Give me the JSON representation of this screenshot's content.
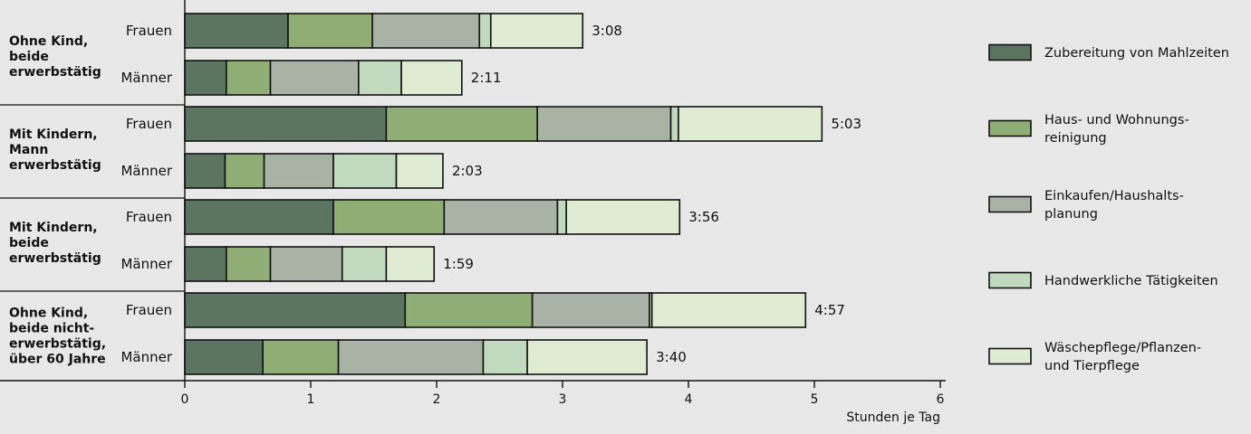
{
  "chart_data": {
    "type": "bar",
    "orientation": "horizontal",
    "stacked": true,
    "xlabel": "Stunden je Tag",
    "xlim": [
      0,
      6
    ],
    "xticks": [
      "0",
      "1",
      "2",
      "3",
      "4",
      "5",
      "6"
    ],
    "grid": false,
    "legend_position": "right",
    "components": [
      {
        "name": "Zubereitung von Mahlzeiten",
        "label_lines": [
          "Zubereitung von Mahlzeiten"
        ],
        "color": "#5b7560"
      },
      {
        "name": "Haus- und Wohnungsreinigung",
        "label_lines": [
          "Haus- und Wohnungs-",
          "reinigung"
        ],
        "color": "#8fad74"
      },
      {
        "name": "Einkaufen/Haushaltsplanung",
        "label_lines": [
          "Einkaufen/Haushalts-",
          "planung"
        ],
        "color": "#a8b3a5"
      },
      {
        "name": "Handwerkliche Tätigkeiten",
        "label_lines": [
          "Handwerkliche Tätigkeiten"
        ],
        "color": "#c1d9be"
      },
      {
        "name": "Wäschepflege/Pflanzen- und Tierpflege",
        "label_lines": [
          "Wäschepflege/Pflanzen-",
          "und Tierpflege"
        ],
        "color": "#e0ebd3"
      }
    ],
    "groups": [
      {
        "label_lines": [
          "Ohne Kind,",
          "beide",
          "erwerbstätig"
        ],
        "bars": [
          {
            "label": "Frauen",
            "total": "3:08",
            "values": [
              0.82,
              0.67,
              0.85,
              0.09,
              0.73
            ]
          },
          {
            "label": "Männer",
            "total": "2:11",
            "values": [
              0.33,
              0.35,
              0.7,
              0.34,
              0.48
            ]
          }
        ]
      },
      {
        "label_lines": [
          "Mit Kindern,",
          "Mann",
          "erwerbstätig"
        ],
        "bars": [
          {
            "label": "Frauen",
            "total": "5:03",
            "values": [
              1.6,
              1.2,
              1.06,
              0.06,
              1.14
            ]
          },
          {
            "label": "Männer",
            "total": "2:03",
            "values": [
              0.32,
              0.31,
              0.55,
              0.5,
              0.37
            ]
          }
        ]
      },
      {
        "label_lines": [
          "Mit Kindern,",
          "beide",
          "erwerbstätig"
        ],
        "bars": [
          {
            "label": "Frauen",
            "total": "3:56",
            "values": [
              1.18,
              0.88,
              0.9,
              0.07,
              0.9
            ]
          },
          {
            "label": "Männer",
            "total": "1:59",
            "values": [
              0.33,
              0.35,
              0.57,
              0.35,
              0.38
            ]
          }
        ]
      },
      {
        "label_lines": [
          "Ohne Kind,",
          "beide nicht-",
          "erwerbstätig,",
          "über 60 Jahre"
        ],
        "bars": [
          {
            "label": "Frauen",
            "total": "4:57",
            "values": [
              1.75,
              1.01,
              0.93,
              0.02,
              1.22
            ]
          },
          {
            "label": "Männer",
            "total": "3:40",
            "values": [
              0.62,
              0.6,
              1.15,
              0.35,
              0.95
            ]
          }
        ]
      }
    ]
  }
}
